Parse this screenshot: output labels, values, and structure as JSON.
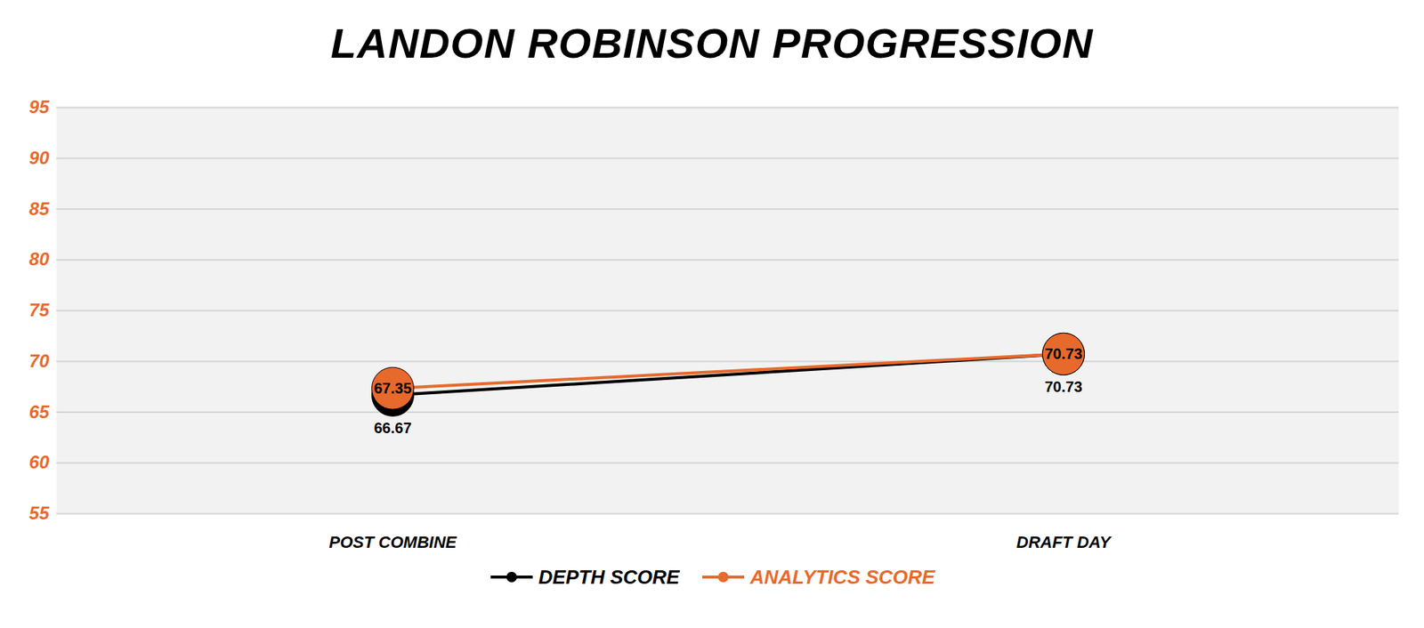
{
  "chart_data": {
    "type": "line",
    "title": "LANDON ROBINSON PROGRESSION",
    "categories": [
      "POST COMBINE",
      "DRAFT DAY"
    ],
    "series": [
      {
        "name": "DEPTH SCORE",
        "color": "#000000",
        "values": [
          66.67,
          70.73
        ],
        "marker": "circle"
      },
      {
        "name": "ANALYTICS SCORE",
        "color": "#e8692c",
        "values": [
          67.35,
          70.73
        ],
        "marker": "circle"
      }
    ],
    "ylim": [
      55,
      95
    ],
    "yticks": [
      55,
      60,
      65,
      70,
      75,
      80,
      85,
      90,
      95
    ],
    "grid": true,
    "legend": "bottom",
    "data_labels": true
  }
}
